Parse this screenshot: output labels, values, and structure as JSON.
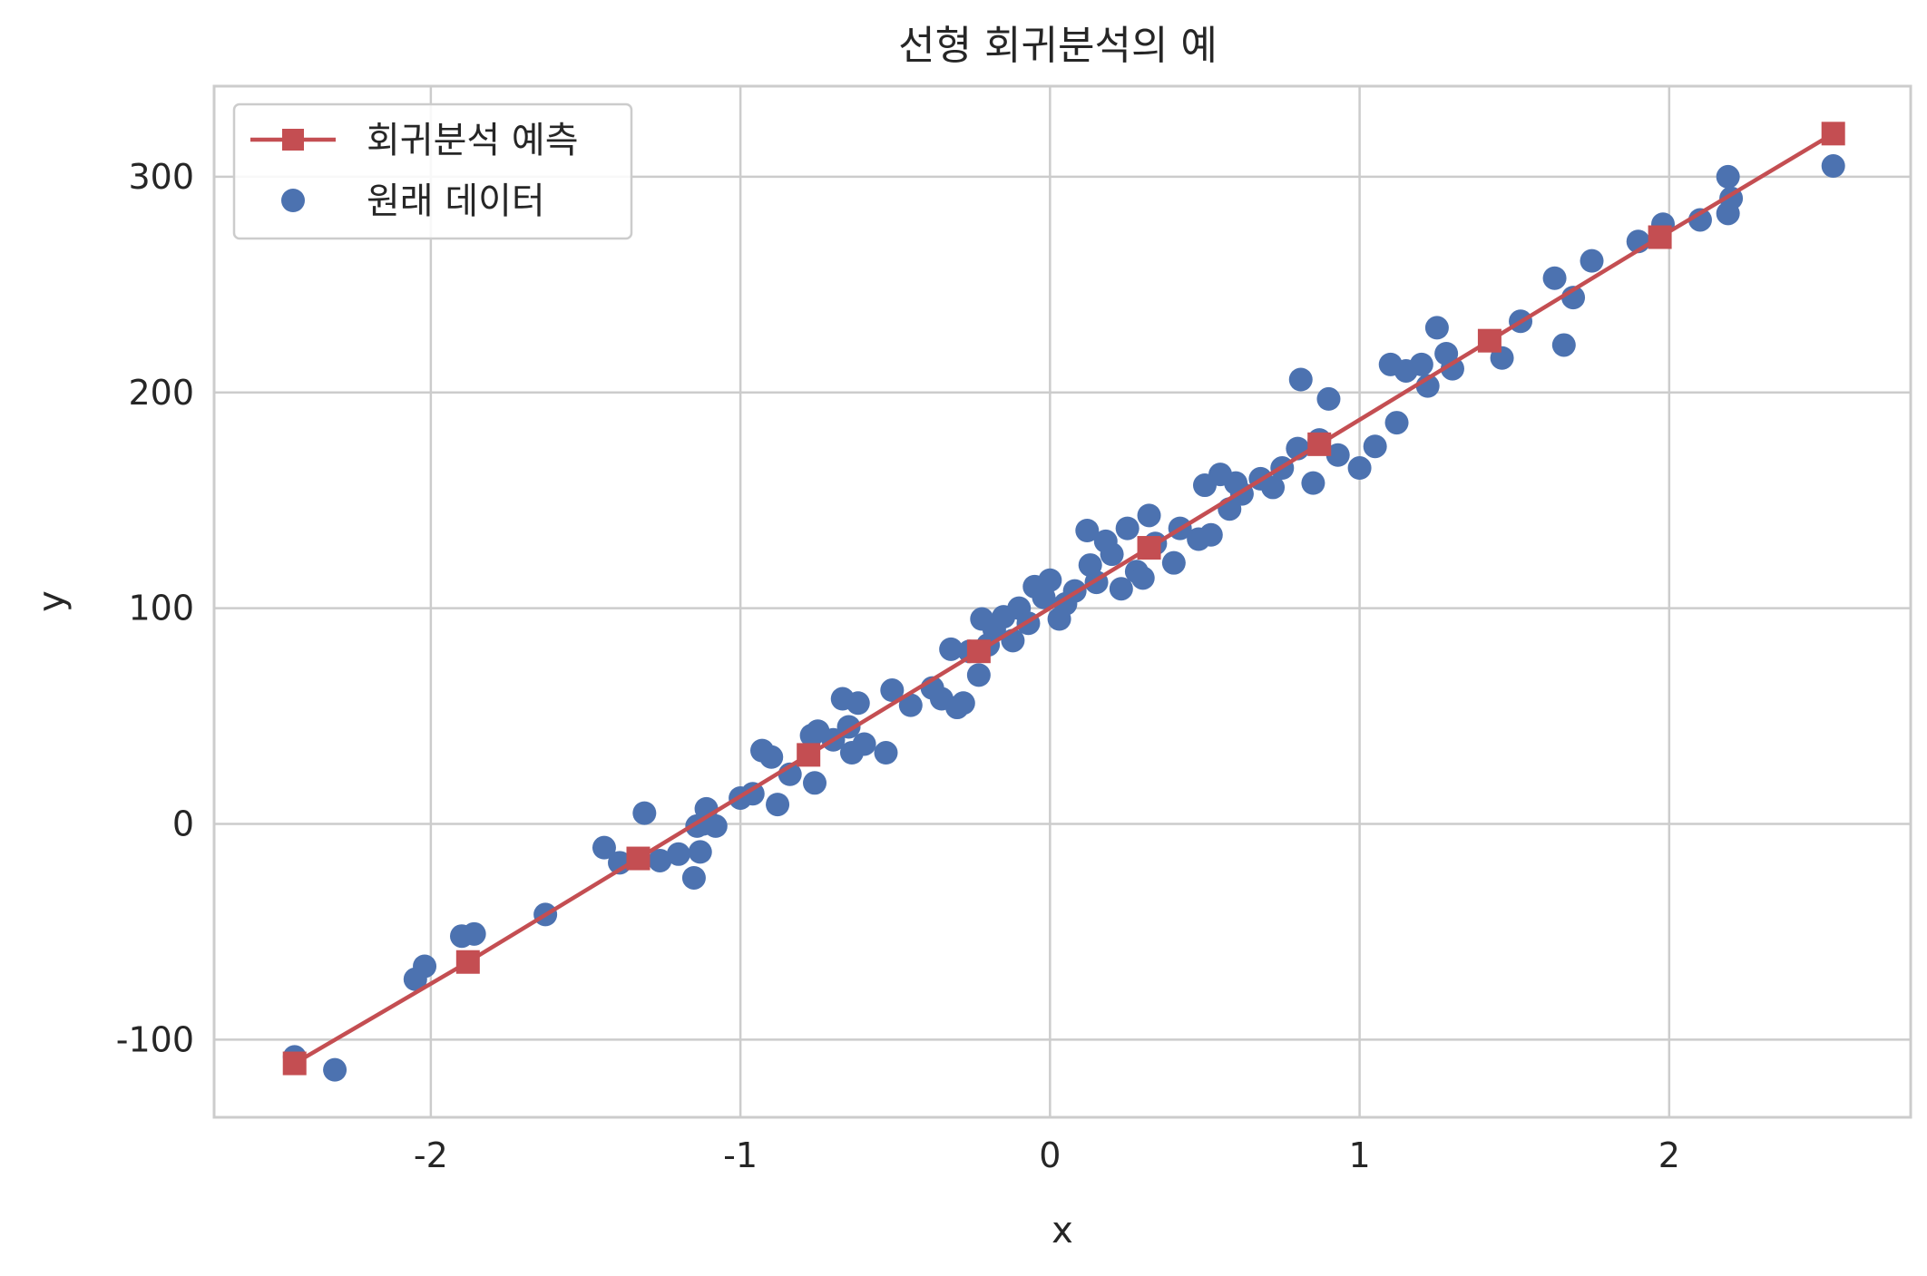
{
  "chart_data": {
    "type": "scatter",
    "title": "선형 회귀분석의 예",
    "xlabel": "x",
    "ylabel": "y",
    "xlim": [
      -2.7,
      2.78
    ],
    "ylim": [
      -136,
      342
    ],
    "xticks": [
      -2,
      -1,
      0,
      1,
      2
    ],
    "yticks": [
      -100,
      0,
      100,
      200,
      300
    ],
    "xtick_labels": [
      "-2",
      "-1",
      "0",
      "1",
      "2"
    ],
    "ytick_labels": [
      "-100",
      "0",
      "100",
      "200",
      "300"
    ],
    "grid": true,
    "legend_position": "top-left",
    "series": [
      {
        "name": "회귀분석 예측",
        "kind": "line",
        "marker": "square",
        "color": "#c44e52",
        "x": [
          -2.44,
          -1.88,
          -1.33,
          -0.78,
          -0.23,
          0.32,
          0.87,
          1.42,
          1.97,
          2.53
        ],
        "y": [
          -111,
          -64,
          -16,
          32,
          80,
          128,
          176,
          224,
          272,
          320
        ]
      },
      {
        "name": "원래 데이터",
        "kind": "scatter",
        "marker": "circle",
        "color": "#4c72b0",
        "x": [
          -2.44,
          -2.31,
          -2.05,
          -2.02,
          -1.9,
          -1.86,
          -1.63,
          -1.44,
          -1.39,
          -1.31,
          -1.26,
          -1.2,
          -1.15,
          -1.14,
          -1.13,
          -1.12,
          -1.11,
          -1.08,
          -1.0,
          -0.96,
          -0.93,
          -0.9,
          -0.88,
          -0.84,
          -0.77,
          -0.76,
          -0.75,
          -0.7,
          -0.67,
          -0.65,
          -0.64,
          -0.62,
          -0.6,
          -0.53,
          -0.51,
          -0.45,
          -0.38,
          -0.35,
          -0.32,
          -0.3,
          -0.28,
          -0.26,
          -0.23,
          -0.22,
          -0.2,
          -0.18,
          -0.15,
          -0.12,
          -0.1,
          -0.07,
          -0.05,
          -0.02,
          0.0,
          0.03,
          0.05,
          0.08,
          0.12,
          0.13,
          0.15,
          0.18,
          0.2,
          0.23,
          0.25,
          0.28,
          0.3,
          0.32,
          0.34,
          0.4,
          0.42,
          0.48,
          0.5,
          0.52,
          0.55,
          0.58,
          0.6,
          0.62,
          0.68,
          0.72,
          0.75,
          0.8,
          0.81,
          0.85,
          0.87,
          0.9,
          0.93,
          1.0,
          1.05,
          1.1,
          1.12,
          1.15,
          1.2,
          1.22,
          1.25,
          1.28,
          1.3,
          1.46,
          1.52,
          1.63,
          1.66,
          1.69,
          1.75,
          1.9,
          1.98,
          2.1,
          2.19,
          2.19,
          2.2,
          2.53
        ],
        "y": [
          -108,
          -114,
          -72,
          -66,
          -52,
          -51,
          -42,
          -11,
          -18,
          5,
          -17,
          -14,
          -25,
          -1,
          -13,
          0,
          7,
          -1,
          12,
          14,
          34,
          31,
          9,
          23,
          41,
          19,
          43,
          39,
          58,
          45,
          33,
          56,
          37,
          33,
          62,
          55,
          63,
          58,
          81,
          54,
          56,
          80,
          69,
          95,
          83,
          90,
          96,
          85,
          100,
          93,
          110,
          105,
          113,
          95,
          102,
          108,
          136,
          120,
          112,
          131,
          125,
          109,
          137,
          117,
          114,
          143,
          130,
          121,
          137,
          132,
          157,
          134,
          162,
          146,
          158,
          153,
          160,
          156,
          165,
          174,
          206,
          158,
          178,
          197,
          171,
          165,
          175,
          213,
          186,
          210,
          213,
          203,
          230,
          218,
          211,
          216,
          233,
          253,
          222,
          244,
          261,
          270,
          278,
          280,
          300,
          283,
          290,
          305
        ]
      }
    ]
  }
}
